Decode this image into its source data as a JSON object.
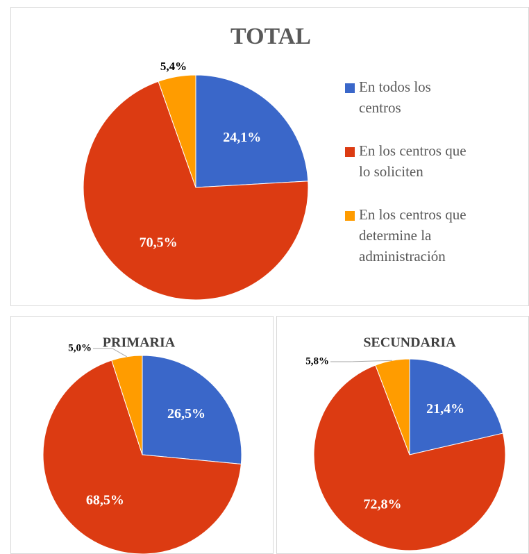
{
  "chart_data": [
    {
      "type": "pie",
      "title": "TOTAL",
      "categories": [
        "En todos los centros",
        "En los centros que lo soliciten",
        "En los centros que determine la administración"
      ],
      "values": [
        24.1,
        70.5,
        5.4
      ],
      "value_labels": [
        "24,1%",
        "70,5%",
        "5,4%"
      ],
      "colors": [
        "#3a67c9",
        "#dc3b12",
        "#ff9c00"
      ],
      "legend": "right"
    },
    {
      "type": "pie",
      "title": "PRIMARIA",
      "values": [
        26.5,
        68.5,
        5.0
      ],
      "value_labels": [
        "26,5%",
        "68,5%",
        "5,0%"
      ],
      "colors": [
        "#3a67c9",
        "#dc3b12",
        "#ff9c00"
      ]
    },
    {
      "type": "pie",
      "title": "SECUNDARIA",
      "values": [
        21.4,
        72.8,
        5.8
      ],
      "value_labels": [
        "21,4%",
        "72,8%",
        "5,8%"
      ],
      "colors": [
        "#3a67c9",
        "#dc3b12",
        "#ff9c00"
      ]
    }
  ]
}
